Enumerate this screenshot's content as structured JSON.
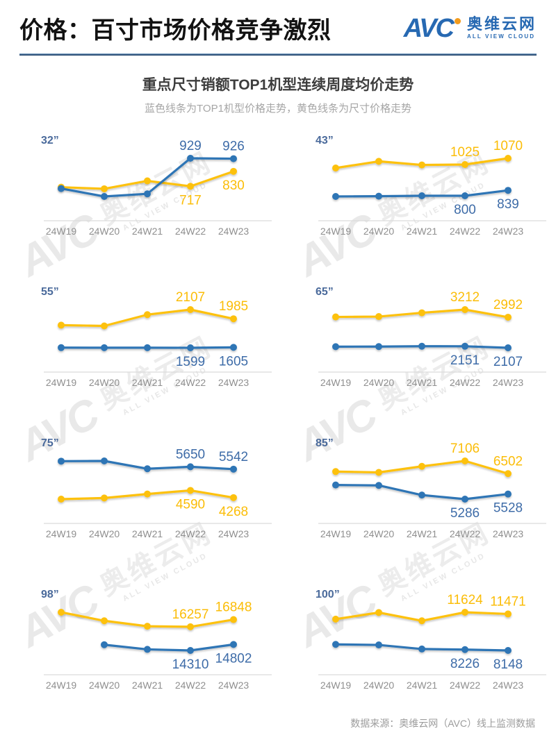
{
  "header": {
    "title": "价格：百寸市场价格竞争激烈",
    "logo": {
      "avc": "AVC",
      "cn": "奥维云网",
      "en": "ALL VIEW CLOUD"
    }
  },
  "section": {
    "title": "重点尺寸销额TOP1机型连续周度均价走势",
    "subtitle": "蓝色线条为TOP1机型价格走势，黄色线条为尺寸价格走势"
  },
  "colors": {
    "blue_line": "#2e74b5",
    "yellow_line": "#fdc10e",
    "blue_label": "#3e6ca8",
    "yellow_label": "#fbbd08",
    "size_label": "#4a6a9b",
    "axis": "#dadada",
    "tick": "#8f8f8f"
  },
  "watermark": {
    "avc": "AVC",
    "cn": "奥维云网",
    "en": "ALL VIEW CLOUD"
  },
  "footer": {
    "source": "数据来源：奥维云网（AVC）线上监测数据"
  },
  "chart_data": [
    {
      "id": "32",
      "type": "line",
      "title": "32\"",
      "size_label": "32”",
      "categories": [
        "24W19",
        "24W20",
        "24W21",
        "24W22",
        "24W23"
      ],
      "series": [
        {
          "name": "TOP1机型价格",
          "color": "blue",
          "values": [
            700,
            640,
            660,
            929,
            926
          ],
          "labels": {
            "24W22": "929",
            "24W23": "926"
          },
          "label_pos": "above"
        },
        {
          "name": "尺寸价格",
          "color": "yellow",
          "values": [
            710,
            698,
            758,
            717,
            830
          ],
          "labels": {
            "24W22": "717",
            "24W23": "830"
          },
          "label_pos": "below"
        }
      ]
    },
    {
      "id": "43",
      "type": "line",
      "title": "43\"",
      "size_label": "43”",
      "categories": [
        "24W19",
        "24W20",
        "24W21",
        "24W22",
        "24W23"
      ],
      "series": [
        {
          "name": "TOP1机型价格",
          "color": "blue",
          "values": [
            795,
            797,
            800,
            800,
            839
          ],
          "labels": {
            "24W22": "800",
            "24W23": "839"
          },
          "label_pos": "below"
        },
        {
          "name": "尺寸价格",
          "color": "yellow",
          "values": [
            1000,
            1048,
            1022,
            1025,
            1070
          ],
          "labels": {
            "24W22": "1025",
            "24W23": "1070"
          },
          "label_pos": "above"
        }
      ]
    },
    {
      "id": "55",
      "type": "line",
      "title": "55\"",
      "size_label": "55”",
      "categories": [
        "24W19",
        "24W20",
        "24W21",
        "24W22",
        "24W23"
      ],
      "series": [
        {
          "name": "TOP1机型价格",
          "color": "blue",
          "values": [
            1601,
            1600,
            1600,
            1599,
            1605
          ],
          "labels": {
            "24W22": "1599",
            "24W23": "1605"
          },
          "label_pos": "below"
        },
        {
          "name": "尺寸价格",
          "color": "yellow",
          "values": [
            1900,
            1890,
            2040,
            2107,
            1985
          ],
          "labels": {
            "24W22": "2107",
            "24W23": "1985"
          },
          "label_pos": "above"
        }
      ]
    },
    {
      "id": "65",
      "type": "line",
      "title": "65\"",
      "size_label": "65”",
      "categories": [
        "24W19",
        "24W20",
        "24W21",
        "24W22",
        "24W23"
      ],
      "series": [
        {
          "name": "TOP1机型价格",
          "color": "blue",
          "values": [
            2140,
            2142,
            2152,
            2151,
            2107
          ],
          "labels": {
            "24W22": "2151",
            "24W23": "2107"
          },
          "label_pos": "below"
        },
        {
          "name": "尺寸价格",
          "color": "yellow",
          "values": [
            3000,
            3010,
            3120,
            3212,
            2992
          ],
          "labels": {
            "24W22": "3212",
            "24W23": "2992"
          },
          "label_pos": "above"
        }
      ]
    },
    {
      "id": "75",
      "type": "line",
      "title": "75\"",
      "size_label": "75”",
      "categories": [
        "24W19",
        "24W20",
        "24W21",
        "24W22",
        "24W23"
      ],
      "series": [
        {
          "name": "TOP1机型价格",
          "color": "blue",
          "values": [
            5900,
            5910,
            5560,
            5650,
            5542
          ],
          "labels": {
            "24W22": "5650",
            "24W23": "5542"
          },
          "label_pos": "above"
        },
        {
          "name": "尺寸价格",
          "color": "yellow",
          "values": [
            4200,
            4250,
            4430,
            4590,
            4268
          ],
          "labels": {
            "24W22": "4590",
            "24W23": "4268"
          },
          "label_pos": "below"
        }
      ]
    },
    {
      "id": "85",
      "type": "line",
      "title": "85\"",
      "size_label": "85”",
      "categories": [
        "24W19",
        "24W20",
        "24W21",
        "24W22",
        "24W23"
      ],
      "series": [
        {
          "name": "TOP1机型价格",
          "color": "blue",
          "values": [
            5960,
            5940,
            5480,
            5286,
            5528
          ],
          "labels": {
            "24W22": "5286",
            "24W23": "5528"
          },
          "label_pos": "below"
        },
        {
          "name": "尺寸价格",
          "color": "yellow",
          "values": [
            6600,
            6560,
            6850,
            7106,
            6502
          ],
          "labels": {
            "24W22": "7106",
            "24W23": "6502"
          },
          "label_pos": "above"
        }
      ]
    },
    {
      "id": "98",
      "type": "line",
      "title": "98\"",
      "size_label": "98”",
      "categories": [
        "24W19",
        "24W20",
        "24W21",
        "24W22",
        "24W23"
      ],
      "series": [
        {
          "name": "TOP1机型价格",
          "color": "blue",
          "values": [
            null,
            14780,
            14400,
            14310,
            14802
          ],
          "labels": {
            "24W22": "14310",
            "24W23": "14802"
          },
          "label_pos": "below"
        },
        {
          "name": "尺寸价格",
          "color": "yellow",
          "values": [
            17450,
            16750,
            16300,
            16257,
            16848
          ],
          "labels": {
            "24W22": "16257",
            "24W23": "16848"
          },
          "label_pos": "above"
        }
      ]
    },
    {
      "id": "100",
      "type": "line",
      "title": "100\"",
      "size_label": "100”",
      "categories": [
        "24W19",
        "24W20",
        "24W21",
        "24W22",
        "24W23"
      ],
      "series": [
        {
          "name": "TOP1机型价格",
          "color": "blue",
          "values": [
            8700,
            8650,
            8280,
            8226,
            8148
          ],
          "labels": {
            "24W22": "8226",
            "24W23": "8148"
          },
          "label_pos": "below"
        },
        {
          "name": "尺寸价格",
          "color": "yellow",
          "values": [
            11000,
            11600,
            10850,
            11624,
            11471
          ],
          "labels": {
            "24W22": "11624",
            "24W23": "11471"
          },
          "label_pos": "above"
        }
      ]
    }
  ]
}
